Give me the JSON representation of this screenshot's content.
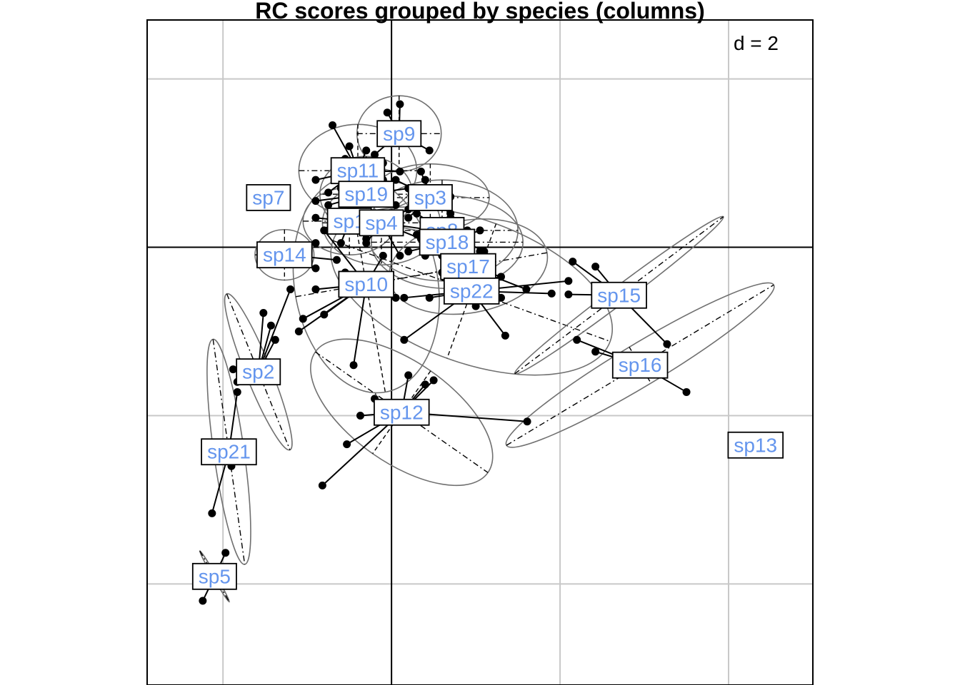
{
  "chart_data": {
    "type": "scatter",
    "title": "RC scores grouped by species (columns)",
    "scale_label": "d = 2",
    "grid_step": 2,
    "xlim": [
      -2.9,
      5.0
    ],
    "ylim": [
      -5.2,
      2.7
    ],
    "grid": true,
    "colors": {
      "label_text": "#6495ED",
      "ellipse": "#707070",
      "grid": "#C8C8C8",
      "point": "#000000"
    },
    "groups": [
      {
        "name": "sp9",
        "center": [
          0.09,
          1.35
        ],
        "ellipse": {
          "rx": 0.5,
          "ry": 0.45,
          "angle": 0
        },
        "points": [
          [
            -0.05,
            1.6
          ],
          [
            0.1,
            1.7
          ],
          [
            0.3,
            1.4
          ],
          [
            0.45,
            1.15
          ],
          [
            -0.2,
            1.1
          ],
          [
            -0.1,
            1.25
          ]
        ]
      },
      {
        "name": "sp11",
        "center": [
          -0.4,
          0.91
        ],
        "ellipse": {
          "rx": 0.7,
          "ry": 0.55,
          "angle": 0
        },
        "points": [
          [
            -0.7,
            1.45
          ],
          [
            -0.5,
            1.2
          ],
          [
            -0.3,
            1.15
          ],
          [
            -0.1,
            1.0
          ],
          [
            -0.9,
            0.8
          ],
          [
            -0.75,
            0.65
          ],
          [
            -0.3,
            0.75
          ],
          [
            0.1,
            0.9
          ],
          [
            -0.55,
            1.05
          ]
        ]
      },
      {
        "name": "sp7",
        "center": [
          -1.46,
          0.59
        ],
        "ellipse": null,
        "points": []
      },
      {
        "name": "sp19",
        "center": [
          -0.3,
          0.63
        ],
        "ellipse": {
          "rx": 0.55,
          "ry": 0.45,
          "angle": 0
        },
        "points": [
          [
            -0.9,
            0.55
          ],
          [
            -0.75,
            0.5
          ],
          [
            -0.6,
            0.7
          ],
          [
            -0.1,
            0.8
          ],
          [
            0.2,
            0.7
          ],
          [
            -0.4,
            0.4
          ],
          [
            0.05,
            0.5
          ]
        ]
      },
      {
        "name": "sp3",
        "center": [
          0.46,
          0.59
        ],
        "ellipse": {
          "rx": 0.7,
          "ry": 0.4,
          "angle": 0
        },
        "points": [
          [
            0.05,
            0.8
          ],
          [
            0.35,
            0.9
          ],
          [
            0.7,
            0.6
          ],
          [
            0.7,
            0.4
          ],
          [
            0.2,
            0.35
          ],
          [
            0.4,
            0.8
          ]
        ]
      },
      {
        "name": "sp1",
        "center": [
          -0.5,
          0.31
        ],
        "ellipse": {
          "rx": 0.55,
          "ry": 0.4,
          "angle": 0
        },
        "points": [
          [
            -0.9,
            0.35
          ],
          [
            -0.75,
            0.2
          ],
          [
            -0.2,
            0.4
          ],
          [
            -0.6,
            0.05
          ],
          [
            -0.3,
            0.1
          ]
        ]
      },
      {
        "name": "sp4",
        "center": [
          -0.12,
          0.29
        ],
        "ellipse": {
          "rx": 0.7,
          "ry": 0.5,
          "angle": 0
        },
        "points": [
          [
            -0.5,
            0.5
          ],
          [
            0.2,
            0.45
          ],
          [
            0.5,
            0.2
          ],
          [
            -0.3,
            0.05
          ],
          [
            0.1,
            -0.1
          ],
          [
            0.35,
            0.1
          ]
        ]
      },
      {
        "name": "sp8",
        "center": [
          0.6,
          0.2
        ],
        "ellipse": {
          "rx": 0.9,
          "ry": 0.6,
          "angle": 0
        },
        "points": [
          [
            0.3,
            0.4
          ],
          [
            0.9,
            0.2
          ],
          [
            1.1,
            -0.05
          ],
          [
            0.4,
            -0.1
          ],
          [
            0.7,
            0.35
          ]
        ]
      },
      {
        "name": "sp18",
        "center": [
          0.66,
          0.06
        ],
        "ellipse": {
          "rx": 0.9,
          "ry": 0.55,
          "angle": 0
        },
        "points": [
          [
            0.3,
            0.15
          ],
          [
            0.6,
            -0.1
          ],
          [
            1.05,
            0.2
          ],
          [
            0.9,
            -0.15
          ],
          [
            0.2,
            -0.05
          ]
        ]
      },
      {
        "name": "sp14",
        "center": [
          -1.27,
          -0.09
        ],
        "ellipse": {
          "rx": 0.35,
          "ry": 0.3,
          "angle": 0
        },
        "points": [
          [
            -0.9,
            0.05
          ],
          [
            -0.65,
            -0.15
          ],
          [
            -0.9,
            -0.25
          ]
        ]
      },
      {
        "name": "sp17",
        "center": [
          0.91,
          -0.23
        ],
        "ellipse": {
          "rx": 0.95,
          "ry": 0.55,
          "angle": 10
        },
        "points": [
          [
            0.5,
            0.0
          ],
          [
            1.3,
            -0.35
          ],
          [
            1.6,
            -0.5
          ],
          [
            0.6,
            -0.3
          ],
          [
            1.05,
            -0.05
          ]
        ]
      },
      {
        "name": "sp10",
        "center": [
          -0.3,
          -0.44
        ],
        "ellipse": {
          "rx": 0.85,
          "ry": 1.3,
          "angle": 10
        },
        "points": [
          [
            -0.8,
            0.2
          ],
          [
            -0.55,
            -0.3
          ],
          [
            -0.8,
            -0.8
          ],
          [
            -1.1,
            -1.0
          ],
          [
            -0.45,
            -1.4
          ],
          [
            -0.1,
            -0.1
          ],
          [
            0.05,
            -0.6
          ],
          [
            -0.9,
            -0.5
          ],
          [
            -1.05,
            -0.85
          ]
        ]
      },
      {
        "name": "sp22",
        "center": [
          0.95,
          -0.52
        ],
        "ellipse": {
          "rx": 1.75,
          "ry": 0.85,
          "angle": -20
        },
        "points": [
          [
            0.15,
            -0.6
          ],
          [
            0.45,
            -0.6
          ],
          [
            1.3,
            -0.6
          ],
          [
            1.9,
            -0.55
          ],
          [
            1.35,
            -1.05
          ],
          [
            1.0,
            -0.7
          ],
          [
            0.15,
            -1.1
          ],
          [
            2.1,
            -0.4
          ]
        ]
      },
      {
        "name": "sp15",
        "center": [
          2.7,
          -0.57
        ],
        "ellipse": {
          "rx": 1.55,
          "ry": 0.1,
          "angle": 37
        },
        "points": [
          [
            2.15,
            -0.17
          ],
          [
            2.42,
            -0.23
          ],
          [
            3.27,
            -1.15
          ],
          [
            2.1,
            -0.56
          ]
        ]
      },
      {
        "name": "sp16",
        "center": [
          2.95,
          -1.4
        ],
        "ellipse": {
          "rx": 1.85,
          "ry": 0.25,
          "angle": 31
        },
        "points": [
          [
            2.42,
            -1.24
          ],
          [
            3.5,
            -1.72
          ],
          [
            2.2,
            -1.1
          ]
        ]
      },
      {
        "name": "sp2",
        "center": [
          -1.58,
          -1.48
        ],
        "ellipse": {
          "rx": 1.0,
          "ry": 0.15,
          "angle": -68
        },
        "points": [
          [
            -1.52,
            -0.78
          ],
          [
            -1.43,
            -0.93
          ],
          [
            -1.38,
            -1.1
          ],
          [
            -1.2,
            -0.5
          ],
          [
            -1.88,
            -1.45
          ],
          [
            -1.83,
            -1.6
          ]
        ]
      },
      {
        "name": "sp12",
        "center": [
          0.12,
          -1.96
        ],
        "ellipse": {
          "rx": 1.25,
          "ry": 0.6,
          "angle": -35
        },
        "points": [
          [
            -0.82,
            -2.83
          ],
          [
            -0.53,
            -2.34
          ],
          [
            -0.37,
            -2.0
          ],
          [
            0.2,
            -1.52
          ],
          [
            0.4,
            -1.63
          ],
          [
            0.5,
            -1.58
          ],
          [
            1.61,
            -2.07
          ],
          [
            -0.2,
            -1.8
          ]
        ]
      },
      {
        "name": "sp13",
        "center": [
          4.32,
          -2.35
        ],
        "ellipse": null,
        "points": []
      },
      {
        "name": "sp21",
        "center": [
          -1.93,
          -2.43
        ],
        "ellipse": {
          "rx": 1.35,
          "ry": 0.18,
          "angle": -82
        },
        "points": [
          [
            -2.13,
            -3.16
          ],
          [
            -1.83,
            -1.72
          ],
          [
            -1.9,
            -2.6
          ]
        ]
      },
      {
        "name": "sp5",
        "center": [
          -2.1,
          -3.91
        ],
        "ellipse": {
          "rx": 0.35,
          "ry": 0.02,
          "angle": -60
        },
        "points": [
          [
            -1.97,
            -3.63
          ],
          [
            -2.24,
            -4.2
          ]
        ]
      }
    ]
  }
}
